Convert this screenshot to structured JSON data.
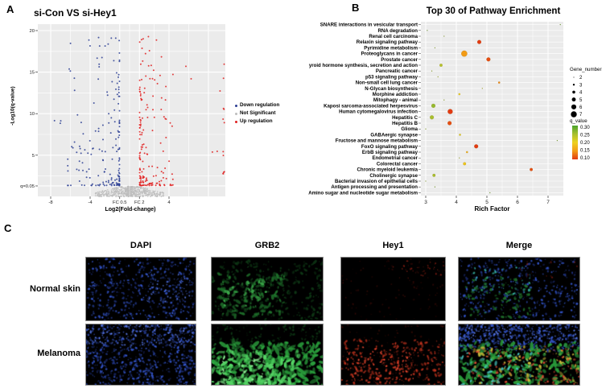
{
  "panels": {
    "a": "A",
    "b": "B",
    "c": "C"
  },
  "chart_data": [
    {
      "type": "scatter",
      "subtype": "volcano",
      "panel": "A",
      "title": "si-Con VS si-Hey1",
      "xlabel": "Log2(Fold-change)",
      "ylabel": "-Log10(q-value)",
      "xlim": [
        -9.3,
        9.7
      ],
      "ylim": [
        0,
        20.8
      ],
      "x_ticks": [
        {
          "v": -8,
          "label": "-8"
        },
        {
          "v": -4,
          "label": "-4"
        },
        {
          "v": -1,
          "label": "FC 0.5"
        },
        {
          "v": 1,
          "label": "FC 2"
        },
        {
          "v": 4,
          "label": "4"
        }
      ],
      "y_ticks": [
        {
          "v": 20,
          "label": "20"
        },
        {
          "v": 15,
          "label": "15"
        },
        {
          "v": 10,
          "label": "10"
        },
        {
          "v": 5,
          "label": "5"
        },
        {
          "v": 1.3,
          "label": "q=0.05"
        }
      ],
      "significance_threshold_q": 0.05,
      "legend_position": "right-outside",
      "grid": true,
      "series": [
        {
          "name": "Down regulation",
          "color": "#2d3f94",
          "n": 170,
          "x_range": [
            -6.6,
            -1.02
          ],
          "y_range": [
            1.35,
            19.6
          ],
          "tail_n": 3,
          "tail_x_range": [
            -8.1,
            -6.6
          ]
        },
        {
          "name": "Not Significant",
          "color": "#bdbdbd",
          "n": 620,
          "x_range": [
            -3.8,
            3.6
          ],
          "y_range": [
            0.02,
            1.28
          ]
        },
        {
          "name": "Up regulation",
          "color": "#e02020",
          "n": 165,
          "x_range": [
            1.02,
            4.5
          ],
          "y_range": [
            1.35,
            19.6
          ],
          "tail_n": 5,
          "tail_x_range": [
            4.8,
            9.2
          ],
          "edge_stack": {
            "x": 9.55,
            "n": 12,
            "y_range": [
              2.2,
              17.6
            ]
          }
        }
      ]
    },
    {
      "type": "scatter",
      "subtype": "enrichment-dotplot",
      "panel": "B",
      "title": "Top 30 of Pathway Enrichment",
      "xlabel": "Rich Factor",
      "xlim": [
        2.84,
        7.5
      ],
      "x_ticks": [
        3,
        4,
        5,
        6,
        7
      ],
      "grid": true,
      "size_legend": {
        "title": "Gene_number",
        "values": [
          2,
          3,
          4,
          5,
          6,
          7
        ]
      },
      "color_legend": {
        "title": "q_value",
        "ticks": [
          "0.30",
          "0.25",
          "0.20",
          "0.15",
          "0.10"
        ],
        "gradient_top_to_bottom": [
          "#4aa32b",
          "#a7bf2e",
          "#edd21f",
          "#f29b16",
          "#e23a12"
        ]
      },
      "pathways": [
        {
          "name": "SNARE interactions in vesicular transport",
          "rich_factor": 7.4,
          "gene_number": 2,
          "q_value": 0.3
        },
        {
          "name": "RNA degradation",
          "rich_factor": 3.05,
          "gene_number": 2,
          "q_value": 0.3
        },
        {
          "name": "Renal cell carcinoma",
          "rich_factor": 3.6,
          "gene_number": 2,
          "q_value": 0.28
        },
        {
          "name": "Relaxin signaling pathway",
          "rich_factor": 4.75,
          "gene_number": 5,
          "q_value": 0.1
        },
        {
          "name": "Pyrimidine metabolism",
          "rich_factor": 3.3,
          "gene_number": 2,
          "q_value": 0.28
        },
        {
          "name": "Proteoglycans in cancer",
          "rich_factor": 4.26,
          "gene_number": 7,
          "q_value": 0.15
        },
        {
          "name": "Prostate cancer",
          "rich_factor": 5.05,
          "gene_number": 5,
          "q_value": 0.11
        },
        {
          "name": "yroid hormone synthesis, secretion and action",
          "rich_factor": 3.5,
          "gene_number": 4,
          "q_value": 0.24
        },
        {
          "name": "Pancreatic cancer",
          "rich_factor": 3.2,
          "gene_number": 2,
          "q_value": 0.27
        },
        {
          "name": "p53 signaling pathway",
          "rich_factor": 3.4,
          "gene_number": 2,
          "q_value": 0.26
        },
        {
          "name": "Non-small cell lung cancer",
          "rich_factor": 5.4,
          "gene_number": 3,
          "q_value": 0.14
        },
        {
          "name": "N-Glycan biosynthesis",
          "rich_factor": 4.85,
          "gene_number": 2,
          "q_value": 0.25
        },
        {
          "name": "Morphine addiction",
          "rich_factor": 4.1,
          "gene_number": 3,
          "q_value": 0.2
        },
        {
          "name": "Mitophagy - animal",
          "rich_factor": 3.6,
          "gene_number": 2,
          "q_value": 0.27
        },
        {
          "name": "Kaposi sarcoma-associated herpesvirus",
          "rich_factor": 3.25,
          "gene_number": 5,
          "q_value": 0.26
        },
        {
          "name": "Human cytomegalovirus infection",
          "rich_factor": 3.8,
          "gene_number": 6,
          "q_value": 0.1
        },
        {
          "name": "Hepatitis C",
          "rich_factor": 3.2,
          "gene_number": 5,
          "q_value": 0.25
        },
        {
          "name": "Hepatitis B",
          "rich_factor": 3.78,
          "gene_number": 5,
          "q_value": 0.11
        },
        {
          "name": "Glioma",
          "rich_factor": 3.0,
          "gene_number": 2,
          "q_value": 0.28
        },
        {
          "name": "GABAergic synapse",
          "rich_factor": 4.12,
          "gene_number": 3,
          "q_value": 0.21
        },
        {
          "name": "Fructose and mannose metabolism",
          "rich_factor": 7.3,
          "gene_number": 2,
          "q_value": 0.29
        },
        {
          "name": "FoxO signaling pathway",
          "rich_factor": 4.65,
          "gene_number": 5,
          "q_value": 0.08
        },
        {
          "name": "ErbB signaling pathway",
          "rich_factor": 4.35,
          "gene_number": 3,
          "q_value": 0.17
        },
        {
          "name": "Endometrial cancer",
          "rich_factor": 4.1,
          "gene_number": 2,
          "q_value": 0.26
        },
        {
          "name": "Colorectal cancer",
          "rich_factor": 4.27,
          "gene_number": 4,
          "q_value": 0.19
        },
        {
          "name": "Chronic myeloid leukemia",
          "rich_factor": 6.45,
          "gene_number": 4,
          "q_value": 0.11
        },
        {
          "name": "Cholinergic synapse",
          "rich_factor": 3.27,
          "gene_number": 4,
          "q_value": 0.25
        },
        {
          "name": "Bacterial invasion of epithelial cells",
          "rich_factor": 3.0,
          "gene_number": 2,
          "q_value": 0.28
        },
        {
          "name": "Antigen processing and presentation",
          "rich_factor": 3.3,
          "gene_number": 2,
          "q_value": 0.29
        },
        {
          "name": "Amino sugar and nucleotide sugar metabolism",
          "rich_factor": 5.1,
          "gene_number": 2,
          "q_value": 0.3
        }
      ]
    }
  ],
  "microscopy": {
    "column_headers": [
      "DAPI",
      "GRB2",
      "Hey1",
      "Merge"
    ],
    "row_labels": [
      "Normal skin",
      "Melanoma"
    ],
    "channel_colors": {
      "DAPI": "#3354c8",
      "GRB2": "#2a9e3c",
      "Hey1": "#c8311c"
    },
    "cells": [
      {
        "row": "Normal skin",
        "col": "DAPI",
        "layers": [
          {
            "color": "#1b2a6e",
            "n": 180,
            "r": [
              0.5,
              1.3
            ],
            "elong": 1.6,
            "region": [
              0,
              0,
              1,
              1
            ]
          },
          {
            "color": "#3354c8",
            "n": 300,
            "r": [
              0.5,
              1.4
            ],
            "elong": 1.6,
            "region": [
              0.02,
              0.02,
              0.98,
              0.98
            ]
          },
          {
            "color": "#5a7ae8",
            "n": 60,
            "r": [
              0.4,
              1.0
            ],
            "elong": 1.4,
            "region": [
              0.55,
              0.25,
              0.95,
              0.7
            ]
          }
        ]
      },
      {
        "row": "Normal skin",
        "col": "GRB2",
        "layers": [
          {
            "color": "#0e3815",
            "n": 260,
            "r": [
              0.6,
              1.8
            ],
            "elong": 2.0,
            "region": [
              0,
              0.05,
              1,
              1
            ]
          },
          {
            "color": "#1e6e2a",
            "n": 120,
            "r": [
              0.7,
              2.0
            ],
            "elong": 2.2,
            "region": [
              0.05,
              0.25,
              0.65,
              0.95
            ]
          },
          {
            "color": "#3aa648",
            "n": 40,
            "r": [
              0.8,
              2.2
            ],
            "elong": 2.2,
            "region": [
              0.1,
              0.35,
              0.5,
              0.8
            ]
          }
        ]
      },
      {
        "row": "Normal skin",
        "col": "Hey1",
        "layers": [
          {
            "color": "#2e0906",
            "n": 90,
            "r": [
              0.5,
              1.2
            ],
            "elong": 1.4,
            "region": [
              0,
              0,
              1,
              1
            ]
          },
          {
            "color": "#8a1e12",
            "n": 30,
            "r": [
              0.4,
              1.1
            ],
            "elong": 1.4,
            "region": [
              0.5,
              0.05,
              1,
              0.35
            ]
          },
          {
            "color": "#c03020",
            "n": 10,
            "r": [
              0.4,
              0.9
            ],
            "elong": 1.3,
            "region": [
              0.6,
              0.05,
              1,
              0.3
            ]
          }
        ]
      },
      {
        "row": "Normal skin",
        "col": "Merge",
        "layers": [
          {
            "color": "#1b2a6e",
            "n": 170,
            "r": [
              0.5,
              1.3
            ],
            "elong": 1.6,
            "region": [
              0,
              0,
              1,
              1
            ]
          },
          {
            "color": "#3354c8",
            "n": 280,
            "r": [
              0.5,
              1.4
            ],
            "elong": 1.6,
            "region": [
              0.02,
              0.02,
              0.98,
              0.98
            ]
          },
          {
            "color": "#1e6e2a",
            "n": 90,
            "r": [
              0.6,
              1.8
            ],
            "elong": 2.0,
            "region": [
              0.05,
              0.3,
              0.6,
              0.95
            ]
          },
          {
            "color": "#35b0a0",
            "n": 40,
            "r": [
              0.5,
              1.4
            ],
            "elong": 1.6,
            "region": [
              0.1,
              0.15,
              0.6,
              0.6
            ]
          },
          {
            "color": "#8a1e12",
            "n": 15,
            "r": [
              0.4,
              1.0
            ],
            "elong": 1.4,
            "region": [
              0.5,
              0.05,
              1,
              0.35
            ]
          }
        ]
      },
      {
        "row": "Melanoma",
        "col": "DAPI",
        "layers": [
          {
            "color": "#1b2a6e",
            "n": 260,
            "r": [
              0.5,
              1.4
            ],
            "elong": 1.6,
            "region": [
              0,
              0,
              1,
              1
            ]
          },
          {
            "color": "#3354c8",
            "n": 420,
            "r": [
              0.5,
              1.4
            ],
            "elong": 1.6,
            "region": [
              0,
              0,
              1,
              1
            ]
          },
          {
            "color": "#5a7ae8",
            "n": 140,
            "r": [
              0.5,
              1.2
            ],
            "elong": 1.5,
            "region": [
              0,
              0,
              1,
              0.35
            ]
          }
        ]
      },
      {
        "row": "Melanoma",
        "col": "GRB2",
        "layers": [
          {
            "color": "#0e3815",
            "n": 120,
            "r": [
              0.5,
              1.5
            ],
            "elong": 1.8,
            "region": [
              0,
              0,
              1,
              0.4
            ]
          },
          {
            "color": "#2a9e3c",
            "n": 300,
            "r": [
              0.8,
              2.6
            ],
            "elong": 3.0,
            "region": [
              0,
              0.3,
              1,
              1
            ]
          },
          {
            "color": "#55d465",
            "n": 120,
            "r": [
              0.8,
              2.4
            ],
            "elong": 3.0,
            "region": [
              0,
              0.45,
              0.8,
              1
            ]
          },
          {
            "color": "#8ae890",
            "n": 40,
            "r": [
              0.6,
              1.6
            ],
            "elong": 2.5,
            "region": [
              0.05,
              0.55,
              0.55,
              1
            ]
          }
        ]
      },
      {
        "row": "Melanoma",
        "col": "Hey1",
        "layers": [
          {
            "color": "#3a0c06",
            "n": 100,
            "r": [
              0.5,
              1.2
            ],
            "elong": 1.5,
            "region": [
              0,
              0,
              1,
              1
            ]
          },
          {
            "color": "#b8301c",
            "n": 260,
            "r": [
              0.5,
              1.5
            ],
            "elong": 1.8,
            "region": [
              0,
              0.25,
              1,
              1
            ]
          },
          {
            "color": "#e84830",
            "n": 90,
            "r": [
              0.5,
              1.3
            ],
            "elong": 1.6,
            "region": [
              0.05,
              0.35,
              0.75,
              0.95
            ]
          }
        ]
      },
      {
        "row": "Melanoma",
        "col": "Merge",
        "layers": [
          {
            "color": "#3354c8",
            "n": 380,
            "r": [
              0.5,
              1.4
            ],
            "elong": 1.6,
            "region": [
              0,
              0,
              1,
              0.45
            ]
          },
          {
            "color": "#5a7ae8",
            "n": 120,
            "r": [
              0.5,
              1.2
            ],
            "elong": 1.5,
            "region": [
              0,
              0,
              1,
              0.3
            ]
          },
          {
            "color": "#2a9e3c",
            "n": 240,
            "r": [
              0.7,
              2.4
            ],
            "elong": 2.8,
            "region": [
              0,
              0.3,
              1,
              1
            ]
          },
          {
            "color": "#c8b838",
            "n": 90,
            "r": [
              0.6,
              1.8
            ],
            "elong": 2.2,
            "region": [
              0.1,
              0.35,
              1,
              1
            ]
          },
          {
            "color": "#d84830",
            "n": 130,
            "r": [
              0.5,
              1.4
            ],
            "elong": 1.8,
            "region": [
              0.05,
              0.35,
              1,
              1
            ]
          },
          {
            "color": "#48c8c0",
            "n": 60,
            "r": [
              0.6,
              1.8
            ],
            "elong": 2.2,
            "region": [
              0,
              0.45,
              0.6,
              1
            ]
          }
        ]
      }
    ]
  }
}
